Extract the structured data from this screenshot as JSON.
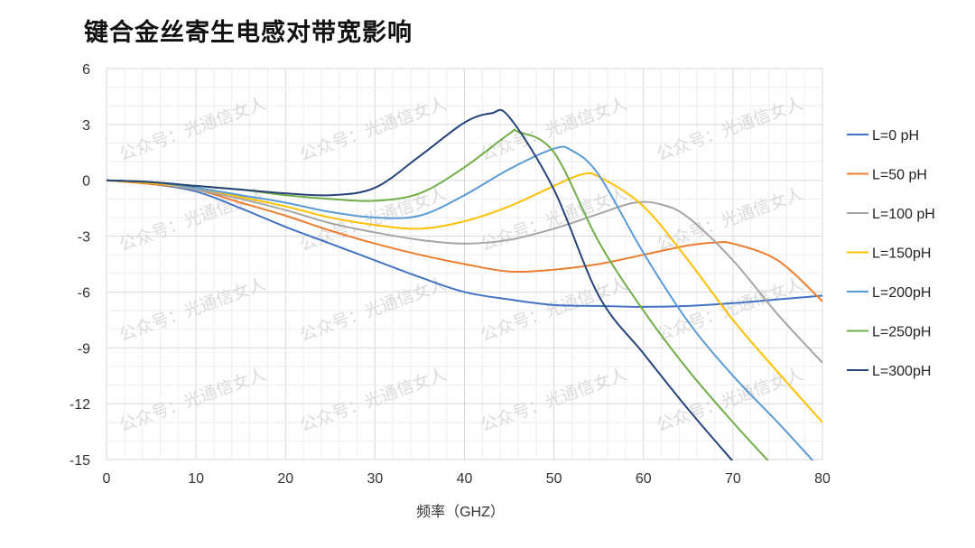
{
  "watermark": "公众号：光通信女人",
  "chart_data": {
    "type": "line",
    "title": "键合金丝寄生电感对带宽影响",
    "xlabel": "频率（GHZ）",
    "ylabel": "",
    "xlim": [
      0,
      80
    ],
    "ylim": [
      -15,
      6
    ],
    "xticks": [
      0,
      10,
      20,
      30,
      40,
      50,
      60,
      70,
      80
    ],
    "yticks": [
      6,
      3,
      0,
      -3,
      -6,
      -9,
      -12,
      -15
    ],
    "grid": true,
    "legend_position": "right",
    "series": [
      {
        "name": "L=0 pH",
        "color": "#4472C4",
        "points": [
          [
            0,
            0
          ],
          [
            5,
            -0.2
          ],
          [
            10,
            -0.6
          ],
          [
            15,
            -1.5
          ],
          [
            20,
            -2.5
          ],
          [
            25,
            -3.4
          ],
          [
            30,
            -4.3
          ],
          [
            35,
            -5.2
          ],
          [
            40,
            -6.0
          ],
          [
            45,
            -6.4
          ],
          [
            50,
            -6.7
          ],
          [
            55,
            -6.75
          ],
          [
            60,
            -6.8
          ],
          [
            65,
            -6.75
          ],
          [
            70,
            -6.6
          ],
          [
            75,
            -6.4
          ],
          [
            80,
            -6.2
          ]
        ]
      },
      {
        "name": "L=50 pH",
        "color": "#ED7D31",
        "points": [
          [
            0,
            0
          ],
          [
            5,
            -0.2
          ],
          [
            10,
            -0.5
          ],
          [
            15,
            -1.2
          ],
          [
            20,
            -1.9
          ],
          [
            25,
            -2.7
          ],
          [
            30,
            -3.4
          ],
          [
            35,
            -4.0
          ],
          [
            40,
            -4.5
          ],
          [
            45,
            -4.9
          ],
          [
            50,
            -4.8
          ],
          [
            55,
            -4.5
          ],
          [
            60,
            -4.0
          ],
          [
            65,
            -3.5
          ],
          [
            68,
            -3.35
          ],
          [
            70,
            -3.4
          ],
          [
            75,
            -4.3
          ],
          [
            80,
            -6.5
          ]
        ]
      },
      {
        "name": "L=100 pH",
        "color": "#A5A5A5",
        "points": [
          [
            0,
            0
          ],
          [
            5,
            -0.15
          ],
          [
            10,
            -0.5
          ],
          [
            15,
            -1.0
          ],
          [
            20,
            -1.6
          ],
          [
            25,
            -2.3
          ],
          [
            30,
            -2.8
          ],
          [
            35,
            -3.2
          ],
          [
            40,
            -3.4
          ],
          [
            45,
            -3.2
          ],
          [
            50,
            -2.6
          ],
          [
            55,
            -1.8
          ],
          [
            59,
            -1.2
          ],
          [
            62,
            -1.3
          ],
          [
            65,
            -2.0
          ],
          [
            70,
            -4.3
          ],
          [
            75,
            -7.2
          ],
          [
            80,
            -9.8
          ]
        ]
      },
      {
        "name": "L=150pH",
        "color": "#FFC000",
        "points": [
          [
            0,
            0
          ],
          [
            5,
            -0.15
          ],
          [
            10,
            -0.4
          ],
          [
            15,
            -0.9
          ],
          [
            20,
            -1.4
          ],
          [
            25,
            -2.0
          ],
          [
            30,
            -2.4
          ],
          [
            35,
            -2.6
          ],
          [
            40,
            -2.2
          ],
          [
            45,
            -1.4
          ],
          [
            50,
            -0.3
          ],
          [
            53,
            0.3
          ],
          [
            55,
            0.2
          ],
          [
            60,
            -1.4
          ],
          [
            65,
            -4.3
          ],
          [
            70,
            -7.5
          ],
          [
            75,
            -10.3
          ],
          [
            80,
            -13.0
          ]
        ]
      },
      {
        "name": "L=200pH",
        "color": "#5B9BD5",
        "points": [
          [
            0,
            0
          ],
          [
            5,
            -0.1
          ],
          [
            10,
            -0.4
          ],
          [
            15,
            -0.8
          ],
          [
            20,
            -1.2
          ],
          [
            25,
            -1.7
          ],
          [
            30,
            -2.0
          ],
          [
            35,
            -1.9
          ],
          [
            40,
            -0.8
          ],
          [
            45,
            0.6
          ],
          [
            50,
            1.7
          ],
          [
            52,
            1.6
          ],
          [
            55,
            0.3
          ],
          [
            60,
            -3.9
          ],
          [
            65,
            -7.6
          ],
          [
            70,
            -10.5
          ],
          [
            75,
            -13.0
          ],
          [
            79,
            -15.1
          ]
        ]
      },
      {
        "name": "L=250pH",
        "color": "#70AD47",
        "points": [
          [
            0,
            0
          ],
          [
            5,
            -0.1
          ],
          [
            10,
            -0.3
          ],
          [
            15,
            -0.5
          ],
          [
            20,
            -0.8
          ],
          [
            25,
            -1.0
          ],
          [
            30,
            -1.1
          ],
          [
            35,
            -0.7
          ],
          [
            40,
            0.7
          ],
          [
            45,
            2.5
          ],
          [
            46,
            2.6
          ],
          [
            50,
            1.5
          ],
          [
            55,
            -3.3
          ],
          [
            60,
            -7.0
          ],
          [
            65,
            -10.2
          ],
          [
            70,
            -13.0
          ],
          [
            74,
            -15.1
          ]
        ]
      },
      {
        "name": "L=300pH",
        "color": "#264478",
        "points": [
          [
            0,
            0
          ],
          [
            5,
            -0.1
          ],
          [
            10,
            -0.3
          ],
          [
            15,
            -0.5
          ],
          [
            20,
            -0.7
          ],
          [
            25,
            -0.8
          ],
          [
            30,
            -0.4
          ],
          [
            35,
            1.3
          ],
          [
            40,
            3.1
          ],
          [
            43,
            3.6
          ],
          [
            45,
            3.4
          ],
          [
            50,
            -0.5
          ],
          [
            55,
            -6.2
          ],
          [
            60,
            -9.3
          ],
          [
            65,
            -12.3
          ],
          [
            70,
            -15.1
          ]
        ]
      }
    ]
  }
}
